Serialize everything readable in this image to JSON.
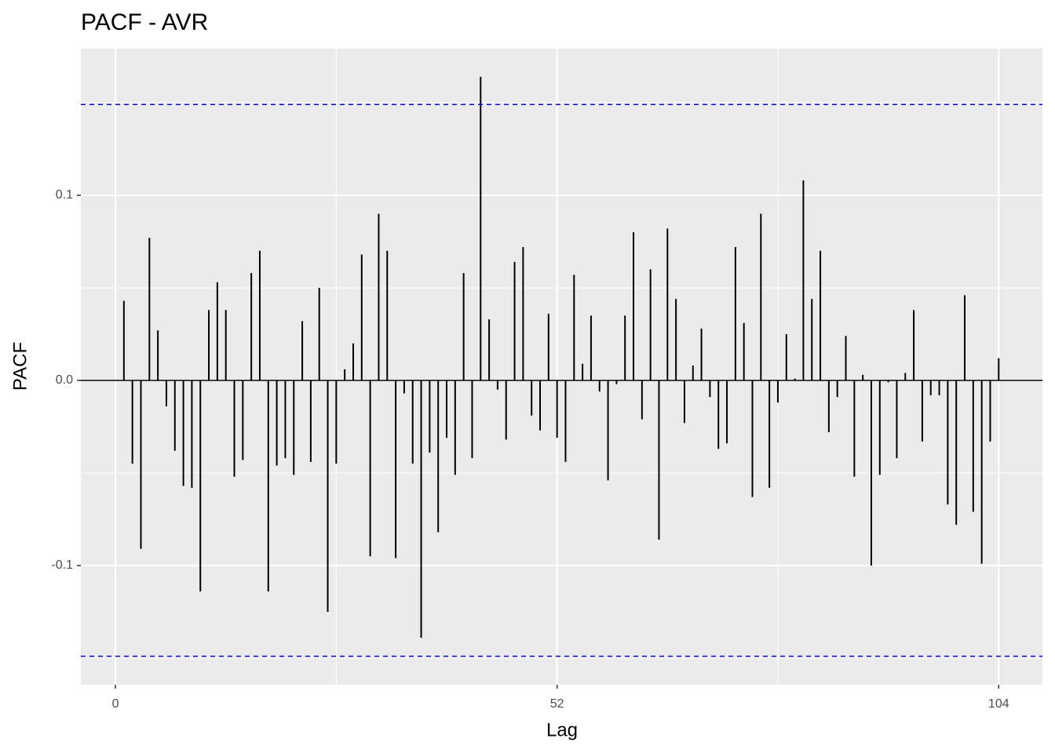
{
  "chart_data": {
    "type": "stem",
    "title": "PACF - AVR",
    "x_label": "Lag",
    "y_label": "PACF",
    "x": [
      1,
      2,
      3,
      4,
      5,
      6,
      7,
      8,
      9,
      10,
      11,
      12,
      13,
      14,
      15,
      16,
      17,
      18,
      19,
      20,
      21,
      22,
      23,
      24,
      25,
      26,
      27,
      28,
      29,
      30,
      31,
      32,
      33,
      34,
      35,
      36,
      37,
      38,
      39,
      40,
      41,
      42,
      43,
      44,
      45,
      46,
      47,
      48,
      49,
      50,
      51,
      52,
      53,
      54,
      55,
      56,
      57,
      58,
      59,
      60,
      61,
      62,
      63,
      64,
      65,
      66,
      67,
      68,
      69,
      70,
      71,
      72,
      73,
      74,
      75,
      76,
      77,
      78,
      79,
      80,
      81,
      82,
      83,
      84,
      85,
      86,
      87,
      88,
      89,
      90,
      91,
      92,
      93,
      94,
      95,
      96,
      97,
      98,
      99,
      100,
      101,
      102,
      103,
      104
    ],
    "values": [
      0.043,
      -0.045,
      -0.091,
      0.077,
      0.027,
      -0.014,
      -0.038,
      -0.057,
      -0.058,
      -0.114,
      0.038,
      0.053,
      0.038,
      -0.052,
      -0.043,
      0.058,
      0.07,
      -0.114,
      -0.046,
      -0.042,
      -0.051,
      0.032,
      -0.044,
      0.05,
      -0.125,
      -0.045,
      0.006,
      0.02,
      0.068,
      -0.095,
      0.09,
      0.07,
      -0.096,
      -0.007,
      -0.045,
      -0.139,
      -0.039,
      -0.082,
      -0.031,
      -0.051,
      0.058,
      -0.042,
      0.164,
      0.033,
      -0.005,
      -0.032,
      0.064,
      0.072,
      -0.019,
      -0.027,
      0.036,
      -0.031,
      -0.044,
      0.057,
      0.009,
      0.035,
      -0.006,
      -0.054,
      -0.002,
      0.035,
      0.08,
      -0.021,
      0.06,
      -0.086,
      0.082,
      0.044,
      -0.023,
      0.008,
      0.028,
      -0.009,
      -0.037,
      -0.034,
      0.072,
      0.031,
      -0.063,
      0.09,
      -0.058,
      -0.012,
      0.025,
      0.001,
      0.108,
      0.044,
      0.07,
      -0.028,
      -0.009,
      0.024,
      -0.052,
      0.003,
      -0.1,
      -0.051,
      -0.001,
      -0.042,
      0.004,
      0.038,
      -0.033,
      -0.008,
      -0.008,
      -0.067,
      -0.078,
      0.046,
      -0.071,
      -0.099,
      -0.033,
      0.012
    ],
    "color": "#000000",
    "conf_lines": [
      0.149,
      -0.149
    ],
    "conf_color": "#0000ff",
    "xlim": [
      -4.07,
      109.15
    ],
    "ylim": [
      -0.1644,
      0.1792
    ],
    "xticks": [
      0,
      52,
      104
    ],
    "yticks": [
      -0.1,
      {
        "value": 0,
        "label": "0.0"
      },
      0.1
    ],
    "x_minor_grid": [
      26,
      78
    ],
    "y_minor_grid": [
      -0.15,
      -0.05,
      0.05,
      0.15
    ],
    "grid": true
  }
}
